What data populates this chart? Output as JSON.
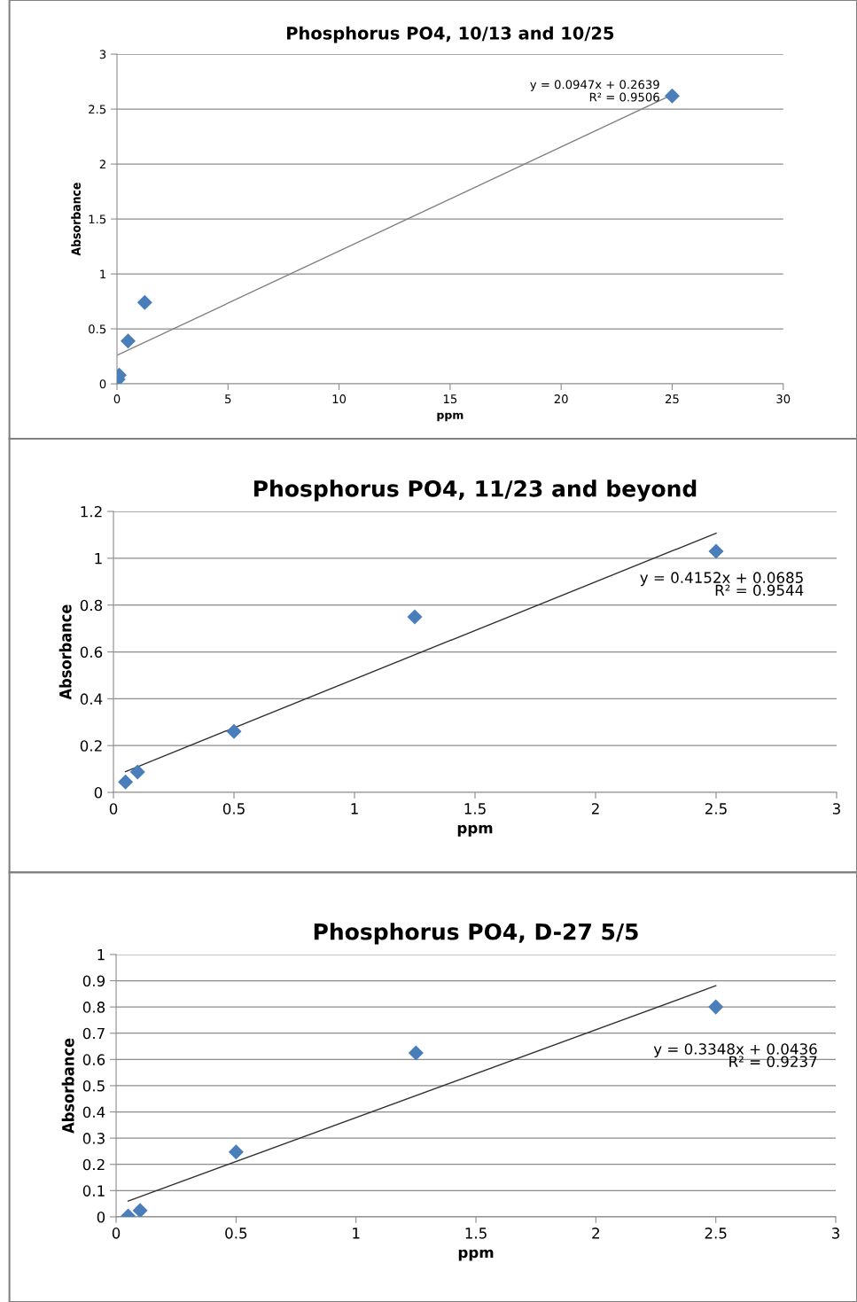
{
  "chart_data": [
    {
      "type": "scatter",
      "title": "Phosphorus PO4, 10/13 and 10/25",
      "xlabel": "ppm",
      "ylabel": "Absorbance",
      "marker": "diamond",
      "grid": "y",
      "legend": false,
      "xlim": [
        0,
        30
      ],
      "xticks": [
        0,
        5,
        10,
        15,
        20,
        25,
        30
      ],
      "ylim": [
        0,
        3
      ],
      "yticks": [
        0,
        0.5,
        1,
        1.5,
        2,
        2.5,
        3
      ],
      "series": [
        {
          "color": "#4a7ebb",
          "x": [
            0.05,
            0.1,
            0.5,
            1.25,
            25
          ],
          "values": [
            0.04,
            0.08,
            0.39,
            0.74,
            2.62
          ]
        },
        {
          "type": "line",
          "color": "#808080",
          "marker": "none",
          "x": [
            0,
            25
          ],
          "values": [
            0.26,
            2.63
          ]
        }
      ],
      "annotations": [
        "y = 0.0947x + 0.2639",
        "R² = 0.9506"
      ]
    },
    {
      "type": "scatter",
      "title": "Phosphorus PO4, 11/23 and beyond",
      "xlabel": "ppm",
      "ylabel": "Absorbance",
      "marker": "diamond",
      "grid": "y",
      "legend": false,
      "xlim": [
        0,
        3
      ],
      "xticks": [
        0,
        0.5,
        1,
        1.5,
        2,
        2.5,
        3
      ],
      "ylim": [
        0,
        1.2
      ],
      "yticks": [
        0,
        0.2,
        0.4,
        0.6,
        0.8,
        1,
        1.2
      ],
      "series": [
        {
          "color": "#4a7ebb",
          "x": [
            0.05,
            0.1,
            0.5,
            1.25,
            2.5
          ],
          "values": [
            0.045,
            0.087,
            0.26,
            0.75,
            1.03
          ]
        },
        {
          "type": "line",
          "color": "#303030",
          "marker": "none",
          "x": [
            0.05,
            2.5
          ],
          "values": [
            0.089,
            1.107
          ]
        }
      ],
      "annotations": [
        "y = 0.4152x + 0.0685",
        "R² = 0.9544"
      ]
    },
    {
      "type": "scatter",
      "title": "Phosphorus PO4, D-27 5/5",
      "xlabel": "ppm",
      "ylabel": "Absorbance",
      "marker": "diamond",
      "grid": "y",
      "legend": false,
      "xlim": [
        0,
        3
      ],
      "xticks": [
        0,
        0.5,
        1,
        1.5,
        2,
        2.5,
        3
      ],
      "ylim": [
        0,
        1
      ],
      "yticks": [
        0,
        0.1,
        0.2,
        0.3,
        0.4,
        0.5,
        0.6,
        0.7,
        0.8,
        0.9,
        1
      ],
      "series": [
        {
          "color": "#4a7ebb",
          "x": [
            0.05,
            0.1,
            0.5,
            1.25,
            2.5
          ],
          "values": [
            0.003,
            0.024,
            0.247,
            0.625,
            0.8
          ]
        },
        {
          "type": "line",
          "color": "#303030",
          "marker": "none",
          "x": [
            0.05,
            2.5
          ],
          "values": [
            0.06,
            0.881
          ]
        }
      ],
      "annotations": [
        "y = 0.3348x + 0.0436",
        "R² = 0.9237"
      ]
    }
  ]
}
